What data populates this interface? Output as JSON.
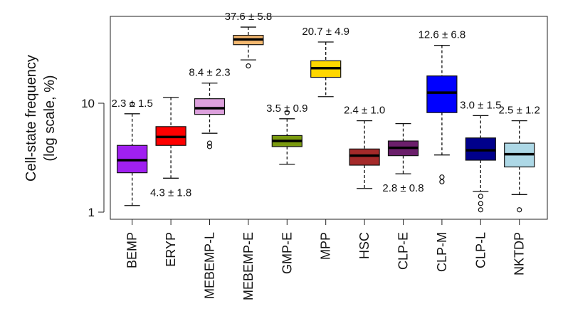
{
  "chart_data": {
    "type": "boxplot",
    "title": "",
    "xlabel": "",
    "ylabel": "Cell-state frequency",
    "ylabel_line2": "(log scale, %)",
    "yscale": "log",
    "ylim": [
      0.9,
      75
    ],
    "yticks": [
      {
        "value": 1,
        "label": "1"
      },
      {
        "value": 10,
        "label": "10"
      }
    ],
    "categories": [
      "BEMP",
      "ERYP",
      "MEBEMP-L",
      "MEBEMP-E",
      "GMP-E",
      "MPP",
      "HSC",
      "CLP-E",
      "CLP-M",
      "CLP-L",
      "NKTDP"
    ],
    "boxes": [
      {
        "name": "BEMP",
        "color": "#a020f0",
        "whisker_low": 1.15,
        "q1": 2.3,
        "median": 3.0,
        "q3": 4.1,
        "whisker_high": 8.0,
        "outliers": [
          9.8
        ],
        "annotation": "2.3 ± 1.5",
        "annotation_pos": "above"
      },
      {
        "name": "ERYP",
        "color": "#ff0000",
        "whisker_low": 2.05,
        "q1": 4.1,
        "median": 4.9,
        "q3": 6.1,
        "whisker_high": 11.3,
        "outliers": [],
        "annotation": "4.3 ± 1.8",
        "annotation_pos": "below"
      },
      {
        "name": "MEBEMP-L",
        "color": "#dda0dd",
        "whisker_low": 5.3,
        "q1": 7.9,
        "median": 9.0,
        "q3": 11.0,
        "whisker_high": 15.3,
        "outliers": [
          4.0,
          4.3
        ],
        "annotation": "8.4 ± 2.3",
        "annotation_pos": "above"
      },
      {
        "name": "MEBEMP-E",
        "color": "#f4b870",
        "whisker_low": 25.0,
        "q1": 34.5,
        "median": 38.5,
        "q3": 42.0,
        "whisker_high": 50.0,
        "outliers": [
          22.0
        ],
        "annotation": "37.6 ± 5.8",
        "annotation_pos": "above"
      },
      {
        "name": "GMP-E",
        "color": "#7a9a0f",
        "whisker_low": 2.75,
        "q1": 4.0,
        "median": 4.5,
        "q3": 5.05,
        "whisker_high": 7.2,
        "outliers": [
          8.2
        ],
        "annotation": "3.5 ± 0.9",
        "annotation_pos": "above"
      },
      {
        "name": "MPP",
        "color": "#ffd700",
        "whisker_low": 11.5,
        "q1": 17.3,
        "median": 21.0,
        "q3": 24.5,
        "whisker_high": 36.5,
        "outliers": [],
        "annotation": "20.7 ± 4.9",
        "annotation_pos": "above"
      },
      {
        "name": "HSC",
        "color": "#a52a2a",
        "whisker_low": 1.65,
        "q1": 2.7,
        "median": 3.3,
        "q3": 3.8,
        "whisker_high": 6.9,
        "outliers": [],
        "annotation": "2.4 ± 1.0",
        "annotation_pos": "above"
      },
      {
        "name": "CLP-E",
        "color": "#6b1f6b",
        "whisker_low": 2.25,
        "q1": 3.3,
        "median": 3.9,
        "q3": 4.5,
        "whisker_high": 6.5,
        "outliers": [],
        "annotation": "2.8 ± 0.8",
        "annotation_pos": "below"
      },
      {
        "name": "CLP-M",
        "color": "#0000ff",
        "whisker_low": 3.35,
        "q1": 8.2,
        "median": 12.5,
        "q3": 17.8,
        "whisker_high": 34.0,
        "outliers": [
          1.9,
          2.1
        ],
        "annotation": "12.6 ± 6.8",
        "annotation_pos": "above"
      },
      {
        "name": "CLP-L",
        "color": "#00008b",
        "whisker_low": 1.55,
        "q1": 3.0,
        "median": 3.7,
        "q3": 4.8,
        "whisker_high": 7.7,
        "outliers": [
          1.4,
          1.2,
          1.05
        ],
        "annotation": "3.0 ± 1.5",
        "annotation_pos": "above"
      },
      {
        "name": "NKTDP",
        "color": "#add8e6",
        "whisker_low": 1.45,
        "q1": 2.6,
        "median": 3.4,
        "q3": 4.3,
        "whisker_high": 6.9,
        "outliers": [
          1.05
        ],
        "annotation": "2.5 ± 1.2",
        "annotation_pos": "above"
      }
    ]
  }
}
